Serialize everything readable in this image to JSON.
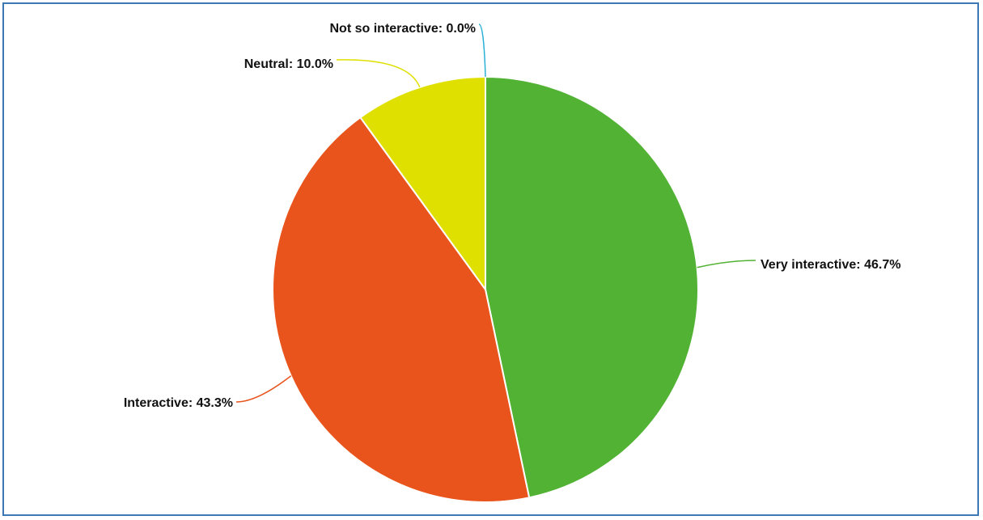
{
  "chart_data": {
    "type": "pie",
    "title": "",
    "slices": [
      {
        "name": "Very interactive",
        "value": 46.7,
        "label": "Very interactive: 46.7%",
        "color": "#52b234"
      },
      {
        "name": "Interactive",
        "value": 43.3,
        "label": "Interactive: 43.3%",
        "color": "#e8541b"
      },
      {
        "name": "Neutral",
        "value": 10.0,
        "label": "Neutral: 10.0%",
        "color": "#dfe000"
      },
      {
        "name": "Not so interactive",
        "value": 0.0,
        "label": "Not so interactive: 0.0%",
        "color": "#2bb0d6"
      }
    ],
    "start_angle": "top",
    "direction": "clockwise",
    "legend": "none"
  }
}
